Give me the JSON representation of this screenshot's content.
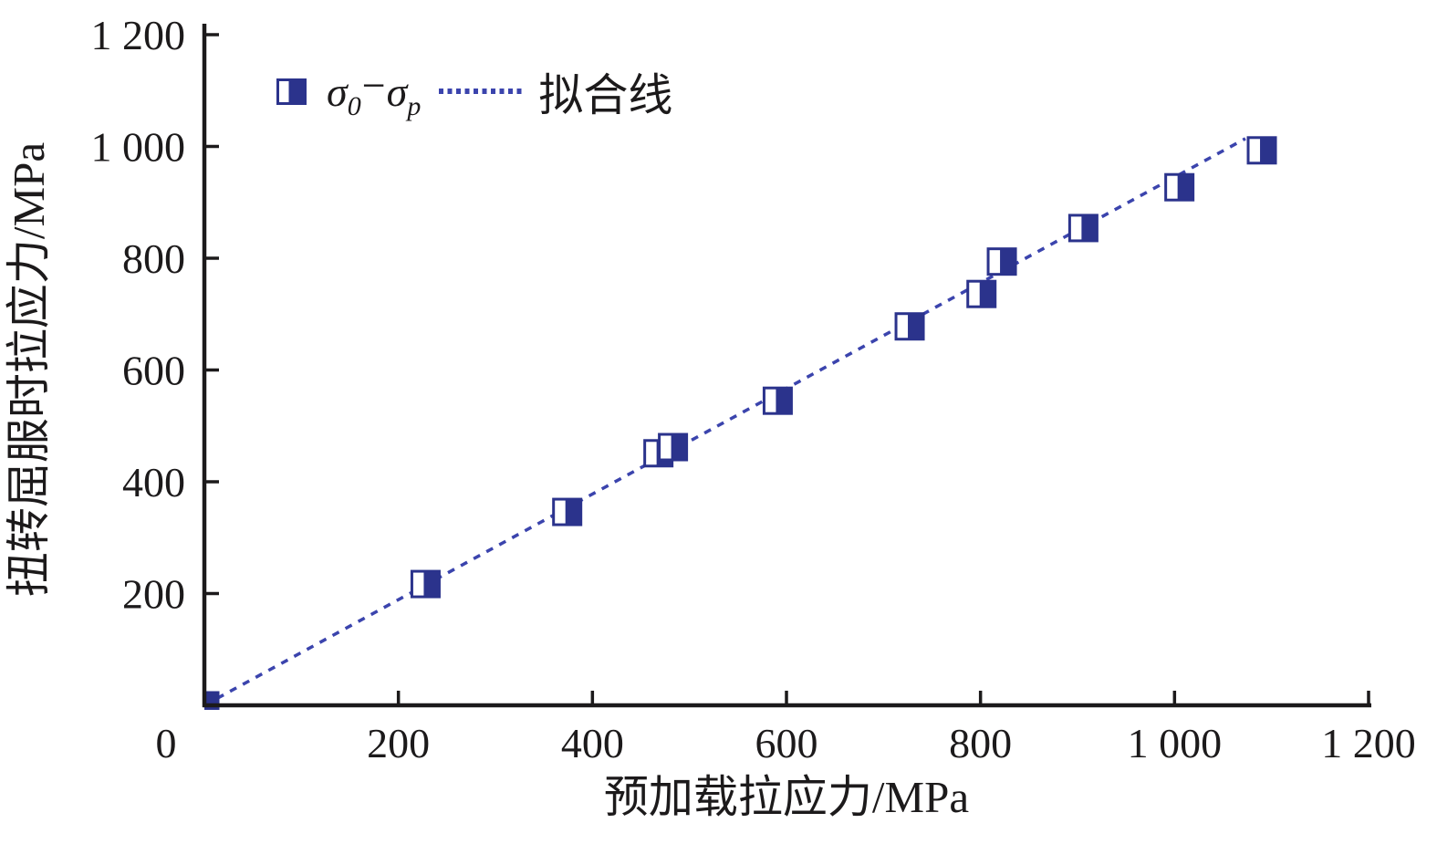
{
  "figure": {
    "background": "#ffffff",
    "legend": {
      "series1": {
        "base1": "σ",
        "sub1": "0",
        "minus": "−",
        "base2": "σ",
        "sub2": "p"
      },
      "series2_label": "拟合线"
    }
  },
  "chart_data": {
    "type": "scatter",
    "title": "",
    "xlabel": "预加载拉应力/MPa",
    "ylabel": "扭转屈服时拉应力/MPa",
    "xlim": [
      0,
      1200
    ],
    "ylim": [
      0,
      1200
    ],
    "grid": false,
    "legend_position": "top-left-inside",
    "x_ticks": [
      0,
      200,
      400,
      600,
      800,
      1000,
      1200
    ],
    "x_tick_labels": [
      "0",
      "200",
      "400",
      "600",
      "800",
      "1 000",
      "1 200"
    ],
    "y_ticks": [
      200,
      400,
      600,
      800,
      1000,
      1200
    ],
    "y_tick_labels": [
      "200",
      "400",
      "600",
      "800",
      "1 000",
      "1 200"
    ],
    "colors": {
      "marker": "#2b338c",
      "line": "#3b44ad",
      "axis": "#1c1a1b"
    },
    "series": [
      {
        "name": "σ0−σp",
        "type": "scatter",
        "marker": "half-filled-square",
        "points": [
          [
            0,
            0
          ],
          [
            228,
            217
          ],
          [
            374,
            346
          ],
          [
            468,
            451
          ],
          [
            483,
            462
          ],
          [
            591,
            545
          ],
          [
            727,
            678
          ],
          [
            801,
            736
          ],
          [
            822,
            794
          ],
          [
            906,
            854
          ],
          [
            1005,
            927
          ],
          [
            1090,
            993
          ]
        ]
      },
      {
        "name": "拟合线",
        "type": "line",
        "style": "dotted",
        "from": [
          0,
          0
        ],
        "to": [
          1073,
          1014
        ]
      }
    ]
  }
}
